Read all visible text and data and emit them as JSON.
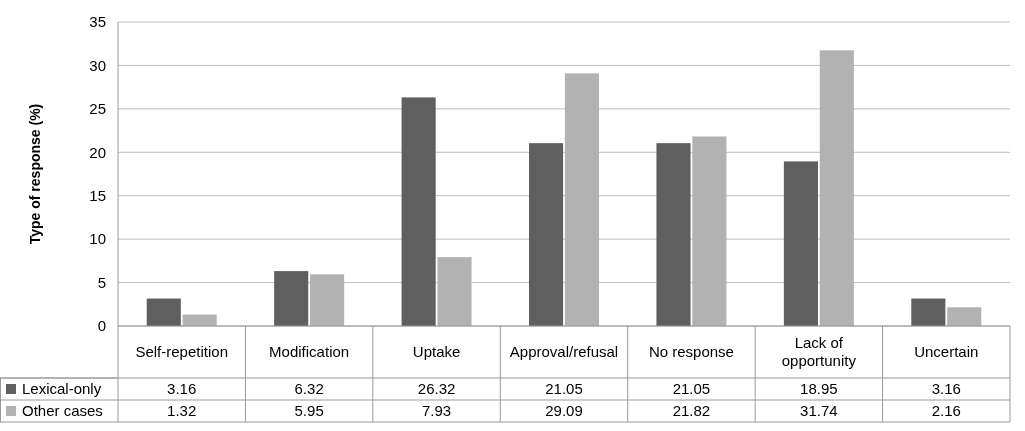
{
  "chart_data": {
    "type": "bar",
    "ylabel": "Type of response (%)",
    "categories": [
      "Self-repetition",
      "Modification",
      "Uptake",
      "Approval/refusal",
      "No response",
      "Lack of opportunity",
      "Uncertain"
    ],
    "series": [
      {
        "name": "Lexical-only",
        "color": "#5f5f5f",
        "values": [
          3.16,
          6.32,
          26.32,
          21.05,
          21.05,
          18.95,
          3.16
        ]
      },
      {
        "name": "Other cases",
        "color": "#b2b2b2",
        "values": [
          1.32,
          5.95,
          7.93,
          29.09,
          21.82,
          31.74,
          2.16
        ]
      }
    ],
    "ylim": [
      0,
      35
    ],
    "yticks": [
      0,
      5,
      10,
      15,
      20,
      25,
      30,
      35
    ],
    "grid": "y",
    "data_labels": true,
    "legend": "bottom"
  }
}
